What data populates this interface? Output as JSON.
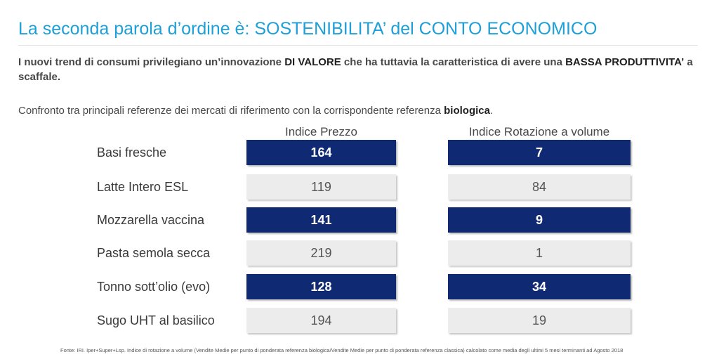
{
  "title": "La seconda parola d’ordine è: SOSTENIBILITA’ del CONTO ECONOMICO",
  "subtitle": {
    "part1": "I nuovi trend di consumi privilegiano un’innovazione ",
    "bold1": "DI VALORE",
    "part2": " che ha tuttavia la caratteristica di avere una ",
    "bold2": "BASSA PRODUTTIVITA’",
    "part3": " a scaffale."
  },
  "intro": {
    "text": "Confronto tra principali referenze dei mercati di riferimento con la corrispondente referenza ",
    "bold": "biologica",
    "end": "."
  },
  "columns": {
    "price": "Indice Prezzo",
    "rotation": "Indice Rotazione a volume"
  },
  "rows": [
    {
      "label": "Basi fresche",
      "price": "164",
      "rotation": "7",
      "style": "dark"
    },
    {
      "label": "Latte Intero ESL",
      "price": "119",
      "rotation": "84",
      "style": "light"
    },
    {
      "label": "Mozzarella vaccina",
      "price": "141",
      "rotation": "9",
      "style": "dark"
    },
    {
      "label": "Pasta semola secca",
      "price": "219",
      "rotation": "1",
      "style": "light"
    },
    {
      "label": "Tonno sott’olio (evo)",
      "price": "128",
      "rotation": "34",
      "style": "dark"
    },
    {
      "label": "Sugo UHT al basilico",
      "price": "194",
      "rotation": "19",
      "style": "light"
    }
  ],
  "footnote": "Fonte: IRI. Iper+Super+Lsp. Indice di rotazione a volume (Vendite Medie per punto di ponderata referenza biologica/Vendite Medie per punto di ponderata referenza classica) calcolato come media degli ultimi 5 mesi terminanti ad Agosto 2018",
  "colors": {
    "title": "#1e9fd8",
    "dark_cell": "#0f2a72",
    "light_cell": "#ececec"
  }
}
